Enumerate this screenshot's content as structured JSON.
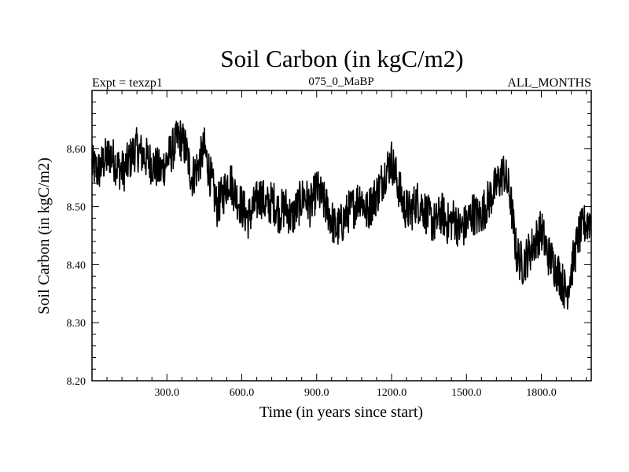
{
  "chart_data": {
    "type": "line",
    "title": "Soil Carbon (in kgC/m2)",
    "subtitle_left": "Expt = texzp1",
    "subtitle_center": "075_0_MaBP",
    "subtitle_right": "ALL_MONTHS",
    "xlabel": "Time (in years since start)",
    "ylabel": "Soil Carbon (in kgC/m2)",
    "xlim": [
      0,
      2000
    ],
    "ylim": [
      8.2,
      8.7
    ],
    "xticks": [
      300,
      600,
      900,
      1200,
      1500,
      1800
    ],
    "xtick_labels": [
      "300.0",
      "600.0",
      "900.0",
      "1200.0",
      "1500.0",
      "1800.0"
    ],
    "yticks": [
      8.2,
      8.3,
      8.4,
      8.5,
      8.6
    ],
    "ytick_labels": [
      "8.20",
      "8.30",
      "8.40",
      "8.50",
      "8.60"
    ],
    "series": [
      {
        "name": "Soil Carbon",
        "color": "#000000",
        "x": [
          0,
          25,
          50,
          75,
          100,
          125,
          150,
          175,
          200,
          225,
          250,
          275,
          300,
          325,
          350,
          375,
          400,
          425,
          450,
          475,
          500,
          525,
          550,
          575,
          600,
          625,
          650,
          675,
          700,
          725,
          750,
          775,
          800,
          825,
          850,
          875,
          900,
          925,
          950,
          975,
          1000,
          1025,
          1050,
          1075,
          1100,
          1125,
          1150,
          1175,
          1200,
          1225,
          1250,
          1275,
          1300,
          1325,
          1350,
          1375,
          1400,
          1425,
          1450,
          1475,
          1500,
          1525,
          1550,
          1575,
          1600,
          1625,
          1650,
          1675,
          1700,
          1725,
          1750,
          1775,
          1800,
          1825,
          1850,
          1875,
          1900,
          1925,
          1950,
          1975,
          2000
        ],
        "values": [
          8.57,
          8.56,
          8.58,
          8.59,
          8.57,
          8.56,
          8.58,
          8.6,
          8.59,
          8.58,
          8.57,
          8.56,
          8.58,
          8.6,
          8.62,
          8.6,
          8.55,
          8.57,
          8.6,
          8.55,
          8.5,
          8.52,
          8.55,
          8.52,
          8.5,
          8.48,
          8.5,
          8.52,
          8.5,
          8.51,
          8.49,
          8.5,
          8.48,
          8.5,
          8.52,
          8.5,
          8.53,
          8.51,
          8.49,
          8.46,
          8.47,
          8.49,
          8.5,
          8.52,
          8.49,
          8.51,
          8.53,
          8.56,
          8.58,
          8.54,
          8.5,
          8.49,
          8.51,
          8.5,
          8.48,
          8.47,
          8.49,
          8.47,
          8.48,
          8.46,
          8.47,
          8.49,
          8.48,
          8.5,
          8.52,
          8.54,
          8.56,
          8.52,
          8.42,
          8.4,
          8.42,
          8.44,
          8.46,
          8.42,
          8.4,
          8.38,
          8.35,
          8.4,
          8.45,
          8.47,
          8.48
        ]
      }
    ]
  }
}
